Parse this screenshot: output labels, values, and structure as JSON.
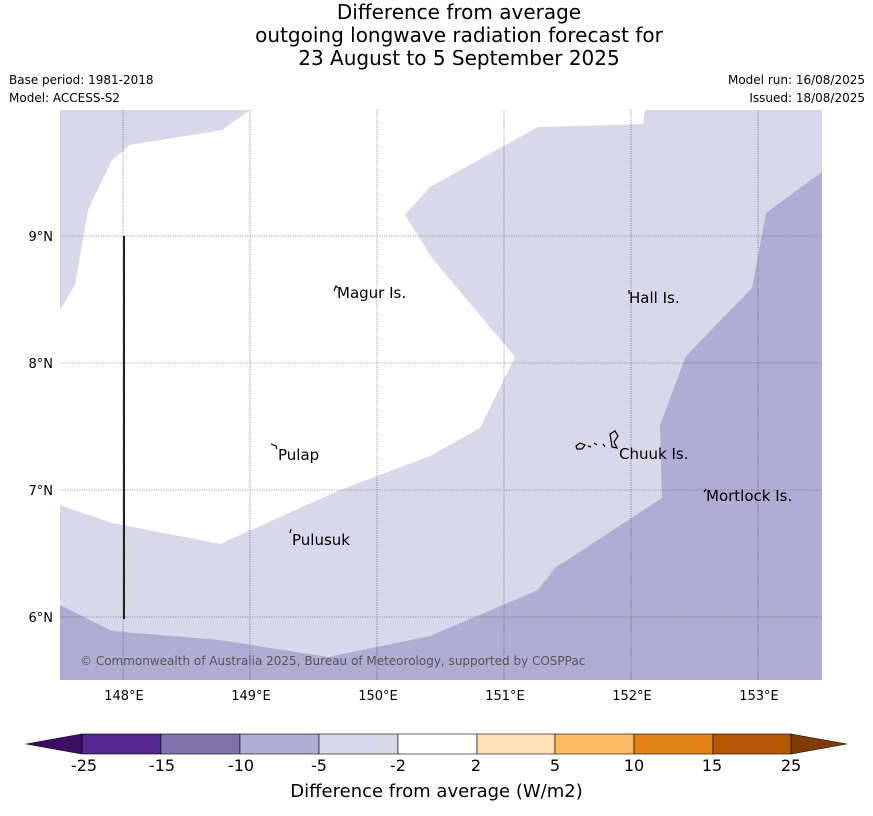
{
  "title": {
    "line1": "Difference from average",
    "line2": "outgoing longwave radiation forecast for",
    "line3": "23 August to 5 September 2025"
  },
  "meta_left": {
    "base_period": "Base period: 1981-2018",
    "model": "Model: ACCESS-S2"
  },
  "meta_right": {
    "model_run": "Model run: 16/08/2025",
    "issued": "Issued: 18/08/2025"
  },
  "map": {
    "lon_ticks": [
      "148°E",
      "149°E",
      "150°E",
      "151°E",
      "152°E",
      "153°E"
    ],
    "lat_ticks": [
      "9°N",
      "8°N",
      "7°N",
      "6°N"
    ],
    "places": [
      {
        "name": "Magur Is."
      },
      {
        "name": "Hall Is."
      },
      {
        "name": "Pulap"
      },
      {
        "name": "Chuuk Is."
      },
      {
        "name": "Mortlock Is."
      },
      {
        "name": "Pulusuk"
      }
    ],
    "copyright": "© Commonwealth of Australia 2025, Bureau of Meteorology, supported by COSPPac",
    "colors": {
      "neutral": "#ffffff",
      "minus_2_to_5": "#d8d8ea",
      "minus_5_to_10": "#b0acd3"
    }
  },
  "colorbar": {
    "title": "Difference from average (W/m2)",
    "labels": [
      "-25",
      "-15",
      "-10",
      "-5",
      "-2",
      "2",
      "5",
      "10",
      "15",
      "25"
    ],
    "colors": {
      "below": "#3b0d63",
      "bins": [
        "#54278f",
        "#8073ac",
        "#b0acd3",
        "#d8d8ea",
        "#ffffff",
        "#fee0b6",
        "#fdb863",
        "#e08214",
        "#b35806"
      ],
      "above": "#7f3b08"
    }
  }
}
